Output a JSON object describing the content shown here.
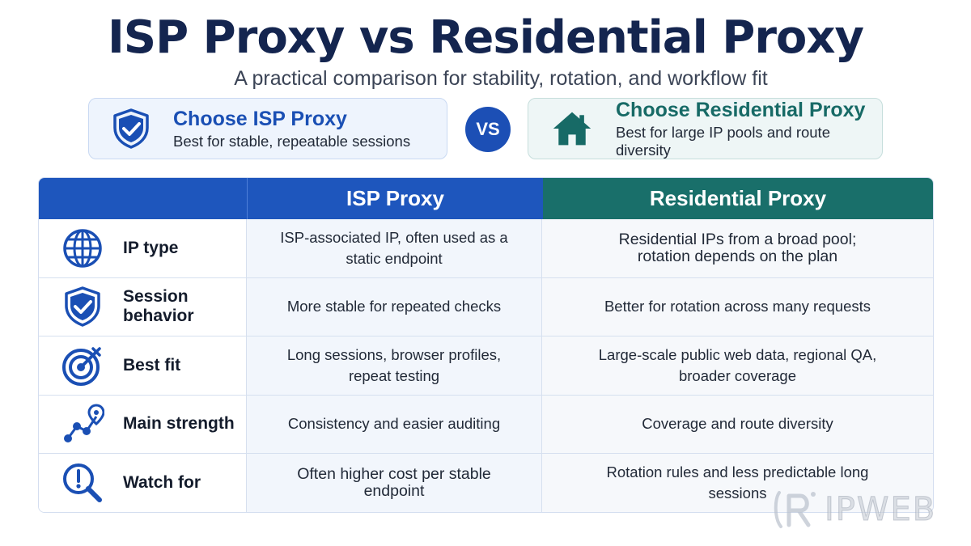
{
  "header": {
    "title": "ISP Proxy vs Residential Proxy",
    "subtitle": "A practical comparison for stability, rotation, and workflow fit"
  },
  "choice_cards": {
    "isp": {
      "title": "Choose ISP Proxy",
      "subtitle": "Best for stable, repeatable sessions",
      "icon": "shield-check-icon",
      "color": "#1a4fb4"
    },
    "vs_label": "VS",
    "residential": {
      "title": "Choose Residential Proxy",
      "subtitle": "Best for large IP pools and route diversity",
      "icon": "house-icon",
      "color": "#176a66"
    }
  },
  "table": {
    "headers": {
      "blank": "",
      "isp": "ISP Proxy",
      "residential": "Residential Proxy"
    },
    "rows": [
      {
        "label": "IP type",
        "icon": "globe-icon",
        "isp": "ISP-associated IP, often used as a static endpoint",
        "residential": "Residential IPs from a broad pool; rotation depends on the plan"
      },
      {
        "label": "Session behavior",
        "icon": "shield-check-icon",
        "isp": "More stable for repeated checks",
        "residential": "Better for rotation across many requests"
      },
      {
        "label": "Best fit",
        "icon": "target-icon",
        "isp": "Long sessions, browser profiles, repeat testing",
        "residential": "Large-scale public web data, regional QA, broader coverage"
      },
      {
        "label": "Main strength",
        "icon": "route-icon",
        "isp": "Consistency and easier auditing",
        "residential": "Coverage and route diversity"
      },
      {
        "label": "Watch for",
        "icon": "search-alert-icon",
        "isp": "Often higher cost per stable endpoint",
        "residential": "Rotation rules and less predictable long sessions"
      }
    ]
  },
  "watermark": {
    "text": "IPWEB",
    "icon": "ipweb-logo-icon"
  },
  "colors": {
    "navy": "#14254f",
    "isp_blue": "#1e56bd",
    "residential_teal": "#196f6a"
  }
}
